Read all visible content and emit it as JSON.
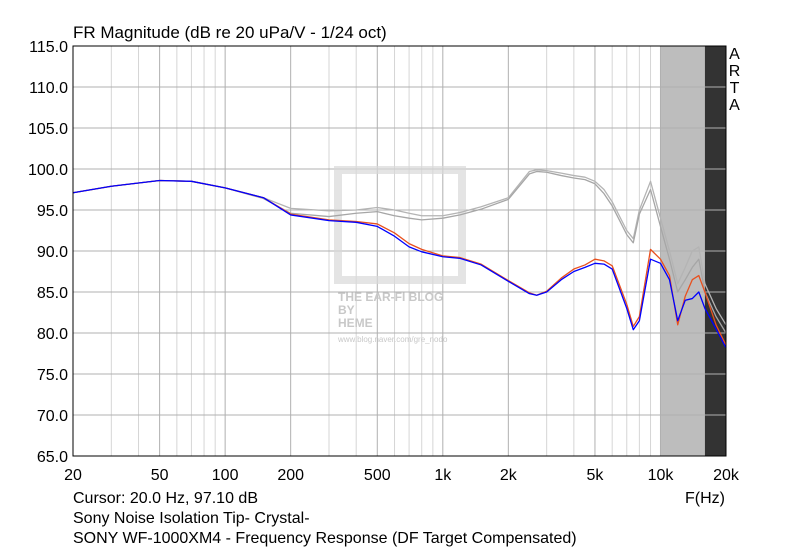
{
  "chart_data": {
    "type": "line",
    "title": "FR Magnitude (dB re 20 uPa/V - 1/24 oct)",
    "side_label": "ARTA",
    "x_label": "F(Hz)",
    "cursor": "Cursor: 20.0 Hz, 97.10 dB",
    "footer_lines": [
      "Sony Noise Isolation Tip- Crystal-",
      "SONY WF-1000XM4 - Frequency Response (DF Target Compensated)"
    ],
    "watermark": {
      "lines": [
        "THE EAR-FI BLOG",
        "BY",
        "HEME"
      ],
      "url": "www.blog.naver.com/gre_nodo"
    },
    "log_x": true,
    "grid": true,
    "xlim": [
      20,
      20000
    ],
    "ylim": [
      65,
      115
    ],
    "xticks": [
      20,
      50,
      100,
      200,
      500,
      {
        "value": 1000,
        "label": "1k"
      },
      {
        "value": 2000,
        "label": "2k"
      },
      {
        "value": 5000,
        "label": "5k"
      },
      {
        "value": 10000,
        "label": "10k"
      },
      {
        "value": 20000,
        "label": "20k"
      }
    ],
    "xminorticks": [
      30,
      40,
      60,
      70,
      80,
      90,
      300,
      400,
      600,
      700,
      800,
      900,
      3000,
      4000,
      6000,
      7000,
      8000,
      9000
    ],
    "yticks": [
      {
        "value": 65,
        "label": "65.0"
      },
      {
        "value": 70,
        "label": "70.0"
      },
      {
        "value": 75,
        "label": "75.0"
      },
      {
        "value": 80,
        "label": "80.0"
      },
      {
        "value": 85,
        "label": "85.0"
      },
      {
        "value": 90,
        "label": "90.0"
      },
      {
        "value": 95,
        "label": "95.0"
      },
      {
        "value": 100,
        "label": "100.0"
      },
      {
        "value": 105,
        "label": "105.0"
      },
      {
        "value": 110,
        "label": "110.0"
      },
      {
        "value": 115,
        "label": "115.0"
      }
    ],
    "shaded_regions": [
      {
        "xrange": [
          10000,
          16000
        ],
        "color": "#bdbdbd"
      },
      {
        "xrange": [
          16000,
          20000
        ],
        "color": "#333333"
      }
    ],
    "x": [
      20,
      30,
      50,
      70,
      100,
      150,
      200,
      300,
      400,
      500,
      600,
      700,
      800,
      1000,
      1200,
      1500,
      2000,
      2500,
      2700,
      3000,
      3500,
      4000,
      4500,
      5000,
      5500,
      6000,
      7000,
      7500,
      8000,
      9000,
      10000,
      11000,
      12000,
      13000,
      14000,
      15000,
      16000,
      18000,
      20000
    ],
    "series": [
      {
        "color": "#b4b4b4",
        "values": [
          97.1,
          97.9,
          98.6,
          98.5,
          97.7,
          96.5,
          95.2,
          94.9,
          95.0,
          95.3,
          95.0,
          94.6,
          94.3,
          94.3,
          94.7,
          95.4,
          96.5,
          99.7,
          99.9,
          99.8,
          99.5,
          99.2,
          99.0,
          98.5,
          97.5,
          96.0,
          92.5,
          91.5,
          95.0,
          98.5,
          94.0,
          90.0,
          86.0,
          88.0,
          90.0,
          90.5,
          86.0,
          83.0,
          81.0
        ]
      },
      {
        "color": "#a6a6a6",
        "values": [
          97.1,
          97.9,
          98.6,
          98.5,
          97.7,
          96.4,
          94.6,
          94.2,
          94.6,
          94.8,
          94.3,
          94.0,
          93.8,
          94.0,
          94.4,
          95.1,
          96.3,
          99.4,
          99.7,
          99.6,
          99.2,
          98.9,
          98.7,
          98.2,
          97.0,
          95.5,
          92.0,
          91.0,
          94.5,
          97.5,
          93.0,
          89.0,
          85.0,
          86.5,
          88.0,
          89.0,
          85.0,
          82.0,
          80.0
        ]
      },
      {
        "color": "#e8501e",
        "values": [
          97.1,
          97.9,
          98.6,
          98.5,
          97.7,
          96.5,
          94.5,
          93.8,
          93.6,
          93.3,
          92.2,
          90.9,
          90.2,
          89.4,
          89.2,
          88.4,
          86.4,
          84.9,
          84.6,
          85.1,
          86.7,
          87.8,
          88.3,
          89.0,
          88.8,
          88.2,
          83.5,
          80.8,
          82.0,
          90.2,
          89.0,
          87.0,
          81.0,
          84.5,
          86.5,
          87.0,
          85.0,
          81.0,
          78.5
        ]
      },
      {
        "color": "#0000ff",
        "values": [
          97.1,
          97.9,
          98.6,
          98.5,
          97.7,
          96.5,
          94.4,
          93.7,
          93.5,
          93.0,
          91.8,
          90.5,
          89.9,
          89.3,
          89.1,
          88.3,
          86.3,
          84.8,
          84.6,
          85.0,
          86.5,
          87.5,
          88.0,
          88.5,
          88.4,
          87.8,
          83.0,
          80.4,
          81.5,
          89.0,
          88.5,
          86.5,
          81.5,
          84.0,
          84.2,
          85.0,
          83.0,
          80.5,
          78.2
        ]
      }
    ]
  }
}
